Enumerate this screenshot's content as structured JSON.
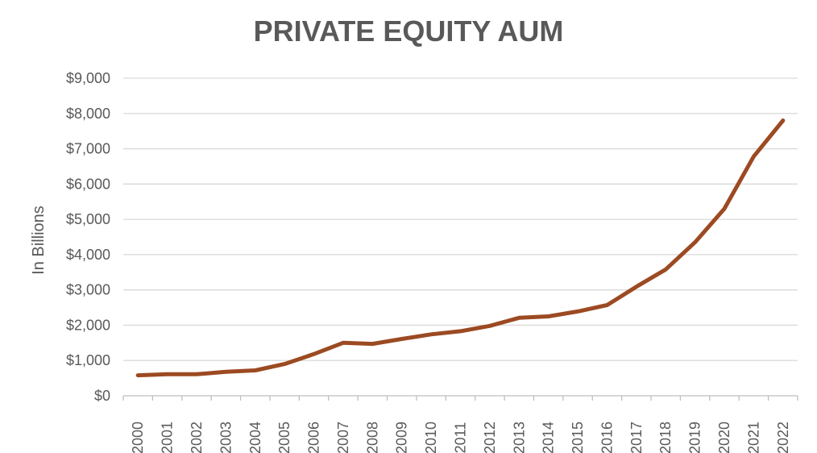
{
  "chart_data": {
    "type": "line",
    "title": "PRIVATE EQUITY AUM",
    "xlabel": "",
    "ylabel": "In Billions",
    "categories": [
      "2000",
      "2001",
      "2002",
      "2003",
      "2004",
      "2005",
      "2006",
      "2007",
      "2008",
      "2009",
      "2010",
      "2011",
      "2012",
      "2013",
      "2014",
      "2015",
      "2016",
      "2017",
      "2018",
      "2019",
      "2020",
      "2021",
      "2022"
    ],
    "series": [
      {
        "values": [
          580,
          610,
          610,
          680,
          720,
          900,
          1180,
          1500,
          1470,
          1610,
          1740,
          1830,
          1980,
          2210,
          2250,
          2390,
          2570,
          3090,
          3580,
          4350,
          5300,
          6780,
          7800
        ]
      }
    ],
    "ylim": [
      0,
      9000
    ],
    "yticks": [
      0,
      1000,
      2000,
      3000,
      4000,
      5000,
      6000,
      7000,
      8000,
      9000
    ],
    "ytick_labels": [
      "$0",
      "$1,000",
      "$2,000",
      "$3,000",
      "$4,000",
      "$5,000",
      "$6,000",
      "$7,000",
      "$8,000",
      "$9,000"
    ],
    "grid": true,
    "legend": "none",
    "colors": {
      "line": "#9C4A22",
      "grid": "#D9D9D9",
      "axis": "#BFBFBF",
      "text": "#595959"
    }
  }
}
